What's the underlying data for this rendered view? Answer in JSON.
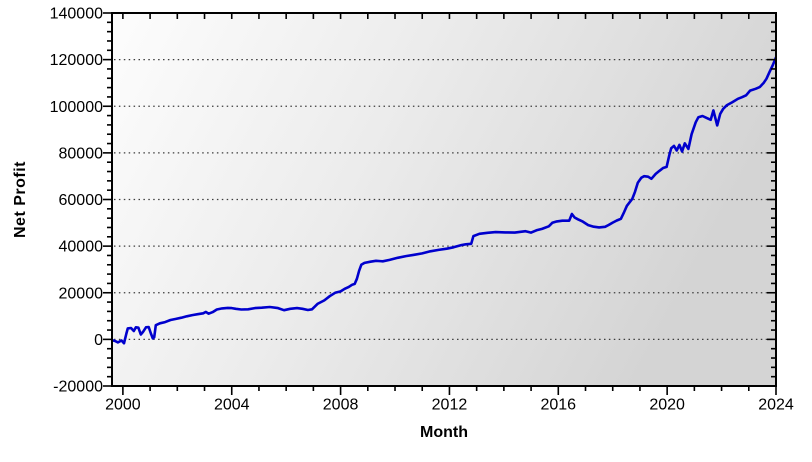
{
  "figure": {
    "x_axis_title": "Month",
    "y_axis_title": "Net Profit"
  },
  "chart_data": {
    "type": "line",
    "title": "",
    "xlabel": "Month",
    "ylabel": "Net Profit",
    "grid": "horizontal-dotted",
    "legend_position": "none",
    "x_domain": [
      1999.6,
      2024.0
    ],
    "y_domain": [
      -20000,
      140000
    ],
    "x_major_ticks": [
      2000,
      2004,
      2008,
      2012,
      2016,
      2020,
      2024
    ],
    "x_minor_tick_step_years": 1,
    "y_major_ticks": [
      -20000,
      0,
      20000,
      40000,
      60000,
      80000,
      100000,
      120000,
      140000
    ],
    "y_minor_tick_step": 4000,
    "gridline_values": [
      0,
      20000,
      40000,
      60000,
      80000,
      100000,
      120000
    ],
    "line_color": "#0000cd",
    "axis_color": "#000000",
    "plot_bg_gradient": [
      "#fdfdfd",
      "#ececec",
      "#d4d4d4"
    ],
    "series": [
      {
        "name": "Net Profit",
        "color": "#0000cd",
        "points": [
          [
            1999.6,
            -400
          ],
          [
            1999.7,
            -600
          ],
          [
            1999.82,
            -1300
          ],
          [
            1999.95,
            -500
          ],
          [
            2000.04,
            -1700
          ],
          [
            2000.13,
            2500
          ],
          [
            2000.18,
            4700
          ],
          [
            2000.3,
            4900
          ],
          [
            2000.4,
            3600
          ],
          [
            2000.48,
            5200
          ],
          [
            2000.57,
            5000
          ],
          [
            2000.66,
            2100
          ],
          [
            2000.74,
            3200
          ],
          [
            2000.85,
            5200
          ],
          [
            2000.95,
            5300
          ],
          [
            2001.03,
            2500
          ],
          [
            2001.1,
            400
          ],
          [
            2001.15,
            900
          ],
          [
            2001.21,
            6100
          ],
          [
            2001.36,
            6900
          ],
          [
            2001.55,
            7400
          ],
          [
            2001.75,
            8300
          ],
          [
            2001.95,
            8800
          ],
          [
            2002.15,
            9300
          ],
          [
            2002.35,
            9900
          ],
          [
            2002.55,
            10400
          ],
          [
            2002.75,
            10800
          ],
          [
            2002.95,
            11200
          ],
          [
            2003.05,
            11800
          ],
          [
            2003.15,
            11000
          ],
          [
            2003.3,
            11700
          ],
          [
            2003.45,
            12800
          ],
          [
            2003.65,
            13300
          ],
          [
            2003.85,
            13500
          ],
          [
            2004.0,
            13400
          ],
          [
            2004.15,
            13100
          ],
          [
            2004.35,
            12800
          ],
          [
            2004.6,
            12900
          ],
          [
            2004.85,
            13400
          ],
          [
            2005.1,
            13600
          ],
          [
            2005.4,
            13900
          ],
          [
            2005.7,
            13400
          ],
          [
            2005.92,
            12500
          ],
          [
            2006.15,
            13100
          ],
          [
            2006.4,
            13400
          ],
          [
            2006.6,
            13100
          ],
          [
            2006.8,
            12600
          ],
          [
            2006.95,
            12900
          ],
          [
            2007.15,
            15200
          ],
          [
            2007.4,
            16700
          ],
          [
            2007.6,
            18500
          ],
          [
            2007.8,
            20000
          ],
          [
            2008.0,
            20600
          ],
          [
            2008.15,
            21700
          ],
          [
            2008.3,
            22500
          ],
          [
            2008.42,
            23400
          ],
          [
            2008.52,
            23800
          ],
          [
            2008.6,
            26000
          ],
          [
            2008.68,
            29400
          ],
          [
            2008.76,
            32000
          ],
          [
            2008.88,
            32800
          ],
          [
            2009.1,
            33300
          ],
          [
            2009.3,
            33700
          ],
          [
            2009.55,
            33500
          ],
          [
            2009.8,
            34100
          ],
          [
            2010.1,
            35000
          ],
          [
            2010.4,
            35700
          ],
          [
            2010.7,
            36300
          ],
          [
            2011.0,
            36900
          ],
          [
            2011.3,
            37800
          ],
          [
            2011.6,
            38400
          ],
          [
            2011.9,
            38900
          ],
          [
            2012.15,
            39500
          ],
          [
            2012.45,
            40500
          ],
          [
            2012.6,
            40800
          ],
          [
            2012.8,
            41000
          ],
          [
            2012.88,
            44300
          ],
          [
            2013.1,
            45300
          ],
          [
            2013.4,
            45700
          ],
          [
            2013.7,
            46000
          ],
          [
            2014.05,
            45900
          ],
          [
            2014.4,
            45800
          ],
          [
            2014.8,
            46400
          ],
          [
            2015.0,
            45800
          ],
          [
            2015.2,
            46800
          ],
          [
            2015.4,
            47400
          ],
          [
            2015.65,
            48500
          ],
          [
            2015.78,
            50000
          ],
          [
            2015.95,
            50600
          ],
          [
            2016.15,
            50900
          ],
          [
            2016.4,
            50900
          ],
          [
            2016.5,
            53800
          ],
          [
            2016.6,
            52300
          ],
          [
            2016.72,
            51500
          ],
          [
            2016.9,
            50500
          ],
          [
            2017.1,
            49000
          ],
          [
            2017.3,
            48350
          ],
          [
            2017.5,
            48050
          ],
          [
            2017.72,
            48300
          ],
          [
            2017.85,
            49050
          ],
          [
            2018.0,
            50100
          ],
          [
            2018.15,
            51000
          ],
          [
            2018.3,
            51700
          ],
          [
            2018.42,
            54700
          ],
          [
            2018.52,
            57300
          ],
          [
            2018.62,
            58800
          ],
          [
            2018.72,
            60300
          ],
          [
            2018.82,
            63300
          ],
          [
            2018.92,
            67200
          ],
          [
            2019.05,
            69300
          ],
          [
            2019.15,
            70000
          ],
          [
            2019.3,
            69800
          ],
          [
            2019.42,
            68900
          ],
          [
            2019.58,
            71000
          ],
          [
            2019.72,
            72300
          ],
          [
            2019.85,
            73500
          ],
          [
            2019.98,
            74000
          ],
          [
            2020.08,
            79000
          ],
          [
            2020.15,
            82000
          ],
          [
            2020.25,
            83000
          ],
          [
            2020.35,
            81000
          ],
          [
            2020.45,
            83400
          ],
          [
            2020.55,
            80600
          ],
          [
            2020.65,
            84100
          ],
          [
            2020.78,
            81700
          ],
          [
            2020.9,
            88000
          ],
          [
            2021.05,
            93100
          ],
          [
            2021.15,
            95300
          ],
          [
            2021.3,
            95800
          ],
          [
            2021.45,
            95000
          ],
          [
            2021.6,
            94200
          ],
          [
            2021.7,
            98200
          ],
          [
            2021.84,
            91800
          ],
          [
            2021.95,
            96700
          ],
          [
            2022.06,
            98900
          ],
          [
            2022.2,
            100500
          ],
          [
            2022.4,
            101800
          ],
          [
            2022.6,
            103200
          ],
          [
            2022.75,
            103900
          ],
          [
            2022.9,
            104700
          ],
          [
            2023.05,
            106700
          ],
          [
            2023.25,
            107500
          ],
          [
            2023.4,
            108200
          ],
          [
            2023.55,
            110100
          ],
          [
            2023.65,
            111800
          ],
          [
            2023.75,
            114400
          ],
          [
            2023.87,
            117400
          ],
          [
            2023.95,
            119500
          ],
          [
            2024.0,
            121000
          ]
        ]
      }
    ]
  }
}
